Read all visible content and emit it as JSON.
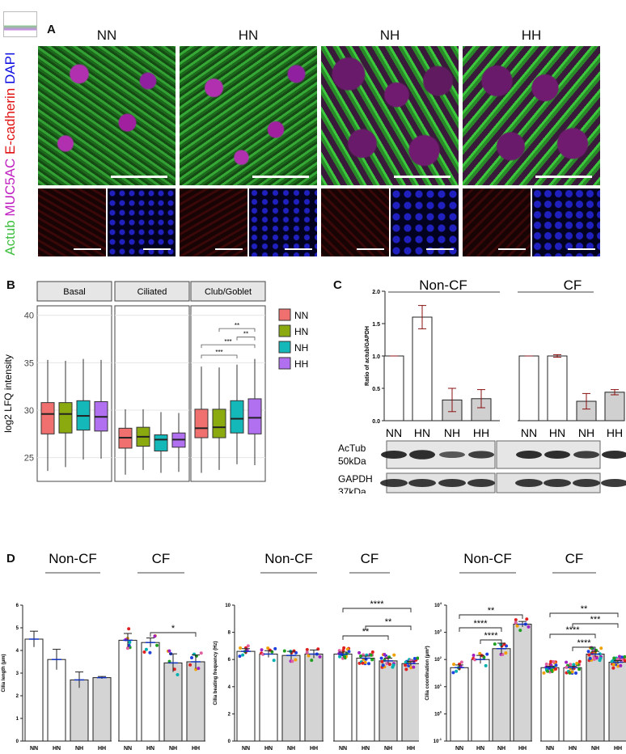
{
  "panelA": {
    "label": "A",
    "conditions": [
      "NN",
      "HN",
      "NH",
      "HH"
    ],
    "stain_labels": {
      "actub": "Actub",
      "muc5ac": "MUC5AC",
      "ecad": "E-cadherin",
      "dapi": "DAPI"
    },
    "colors": {
      "actub": "#3fbf3f",
      "muc5ac": "#c020c0",
      "ecad": "#e01010",
      "dapi": "#1010e0"
    }
  },
  "panelB": {
    "label": "B",
    "ylabel": "log2 LFQ intensity",
    "facets": [
      "Basal",
      "Ciliated",
      "Club/Goblet"
    ],
    "yticks": [
      25,
      30,
      35,
      40
    ],
    "ylim": [
      22.5,
      41
    ],
    "legend": [
      "NN",
      "HN",
      "NH",
      "HH"
    ],
    "colors": [
      "#f07070",
      "#8aaa10",
      "#14b8b8",
      "#b070f0"
    ],
    "boxes": [
      [
        [
          23.6,
          27.5,
          29.6,
          30.8,
          35.3
        ],
        [
          24.0,
          27.6,
          29.6,
          30.8,
          35.2
        ],
        [
          24.8,
          27.9,
          29.4,
          31.0,
          35.4
        ],
        [
          24.9,
          27.8,
          29.3,
          30.9,
          35.3
        ]
      ],
      [
        [
          23.2,
          26.0,
          27.1,
          28.1,
          30.1
        ],
        [
          23.7,
          26.2,
          27.2,
          28.2,
          30.1
        ],
        [
          23.4,
          25.7,
          26.9,
          27.4,
          29.8
        ],
        [
          23.5,
          26.1,
          26.9,
          27.6,
          29.7
        ]
      ],
      [
        [
          23.4,
          27.1,
          28.1,
          30.1,
          34.6
        ],
        [
          23.7,
          27.1,
          28.2,
          30.1,
          34.5
        ],
        [
          24.3,
          27.6,
          29.1,
          31.0,
          34.8
        ],
        [
          24.2,
          27.5,
          29.2,
          31.2,
          35.4
        ]
      ]
    ],
    "significance": [
      "**",
      "**",
      "***",
      "***"
    ]
  },
  "panelC": {
    "label": "C",
    "groups": [
      "Non-CF",
      "CF"
    ],
    "ylabel": "Ratio of actub/GAPDH",
    "yticks": [
      "0.0",
      "0.5",
      "1.0",
      "1.5",
      "2.0"
    ],
    "categories": [
      "NN",
      "HN",
      "NH",
      "HH",
      "NN",
      "HN",
      "NH",
      "HH"
    ],
    "values": [
      1.0,
      1.6,
      0.32,
      0.34,
      1.0,
      1.0,
      0.3,
      0.44
    ],
    "errors": [
      0.0,
      0.18,
      0.18,
      0.14,
      0.0,
      0.02,
      0.12,
      0.04
    ],
    "blot_labels": [
      {
        "name": "AcTub",
        "kda": "50kDa"
      },
      {
        "name": "GAPDH",
        "kda": "37kDa"
      }
    ]
  },
  "panelD": {
    "label": "D",
    "groups": [
      "Non-CF",
      "CF"
    ],
    "categories": [
      "NN",
      "HN",
      "NH",
      "HH",
      "NN",
      "HN",
      "NH",
      "HH"
    ],
    "plot1": {
      "ylabel": "Cilia length (μm)",
      "yticks": [
        "0",
        "1",
        "2",
        "3",
        "4",
        "5",
        "6"
      ],
      "values": [
        4.5,
        3.6,
        2.7,
        2.8,
        4.45,
        4.35,
        3.45,
        3.5
      ],
      "errors": [
        0.35,
        0.45,
        0.35,
        0.05,
        0.3,
        0.2,
        0.4,
        0.3
      ],
      "significance": [
        "*"
      ]
    },
    "plot2": {
      "ylabel": "Cilia beating frequency (Hz)",
      "yticks": [
        "0",
        "2",
        "4",
        "6",
        "8",
        "10"
      ],
      "values": [
        6.6,
        6.4,
        6.3,
        6.4,
        6.4,
        6.1,
        5.9,
        5.7
      ],
      "errors": [
        0.2,
        0.25,
        0.3,
        0.3,
        0.15,
        0.15,
        0.2,
        0.15
      ],
      "significance": [
        "****",
        "**",
        "**"
      ]
    },
    "plot3": {
      "ylabel": "Cilia coordination (μm²)",
      "ytick_base": "10",
      "ytick_exps": [
        "-1",
        "0",
        "1",
        "2",
        "3",
        "4"
      ],
      "log_values": [
        1.7,
        2.0,
        2.4,
        3.3,
        1.7,
        1.7,
        2.2,
        1.9
      ],
      "significance": [
        "**",
        "****",
        "****",
        "**",
        "***",
        "****",
        "****"
      ]
    }
  }
}
